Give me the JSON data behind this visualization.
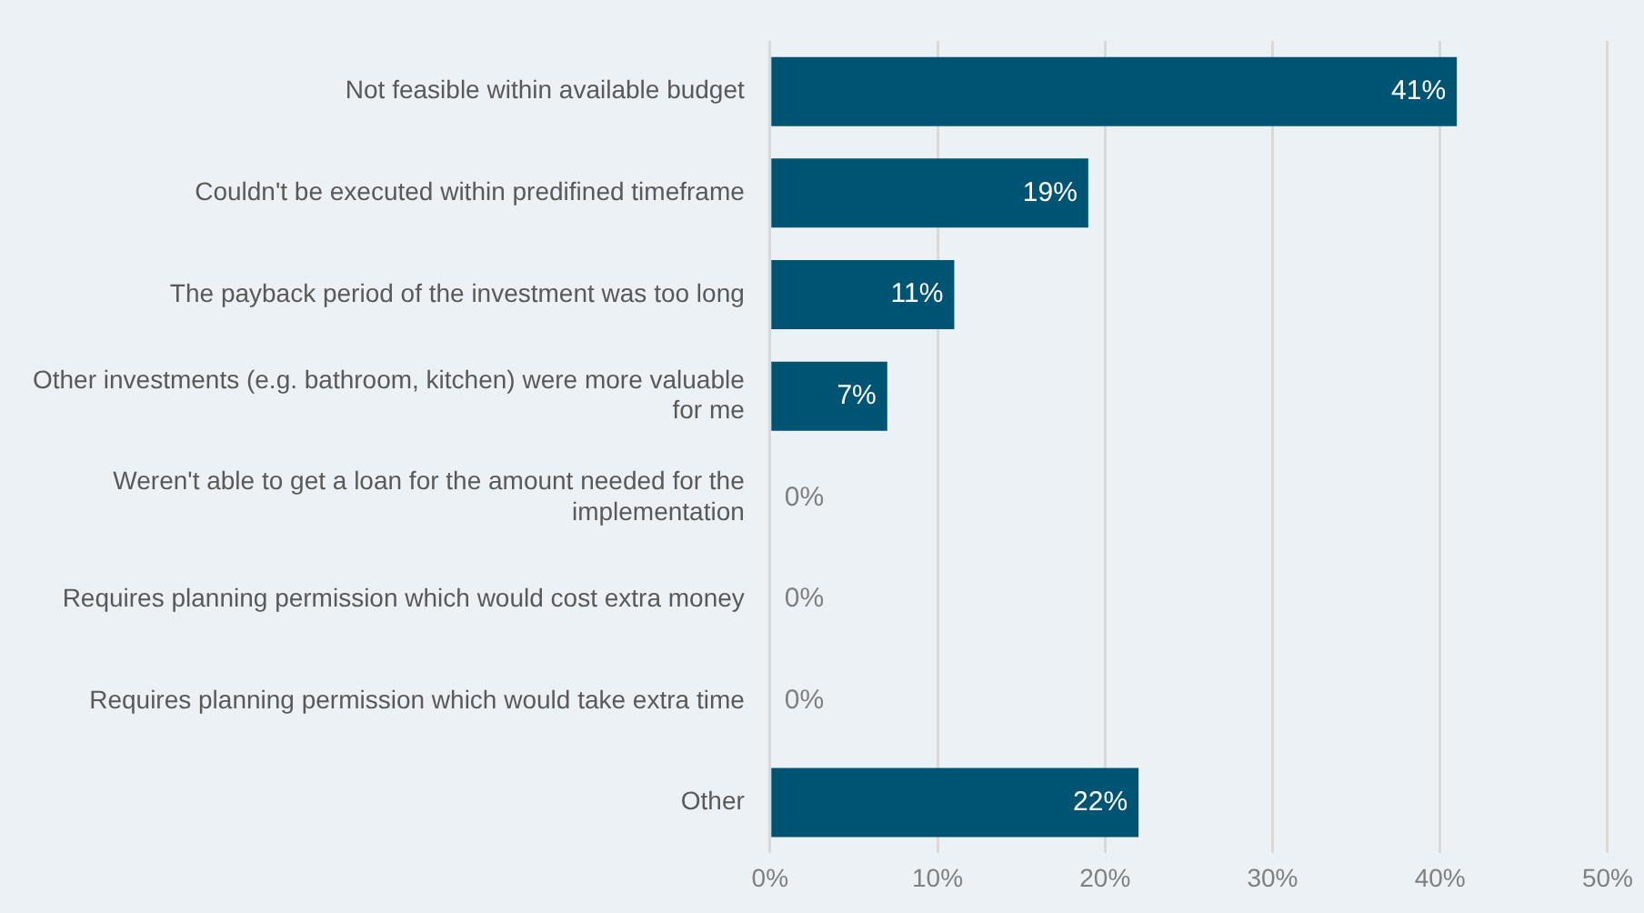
{
  "chart_data": {
    "type": "bar",
    "orientation": "horizontal",
    "categories": [
      "Not feasible within available budget",
      "Couldn't be executed within predifined timeframe",
      "The payback period of the investment was too long",
      "Other investments (e.g. bathroom, kitchen) were more valuable for me",
      "Weren't able to get a loan for the amount needed for the implementation",
      "Requires planning permission which would cost extra money",
      "Requires planning permission which would take extra time",
      "Other"
    ],
    "values": [
      41,
      19,
      11,
      7,
      0,
      0,
      0,
      22
    ],
    "value_labels": [
      "41%",
      "19%",
      "11%",
      "7%",
      "0%",
      "0%",
      "0%",
      "22%"
    ],
    "color": "#005473",
    "xlim": [
      0,
      50
    ],
    "xticks": [
      {
        "value": 0,
        "label": "0%"
      },
      {
        "value": 10,
        "label": "10%"
      },
      {
        "value": 20,
        "label": "20%"
      },
      {
        "value": 30,
        "label": "30%"
      },
      {
        "value": 40,
        "label": "40%"
      },
      {
        "value": 50,
        "label": "50%"
      }
    ],
    "grid": "x",
    "legend": false
  }
}
